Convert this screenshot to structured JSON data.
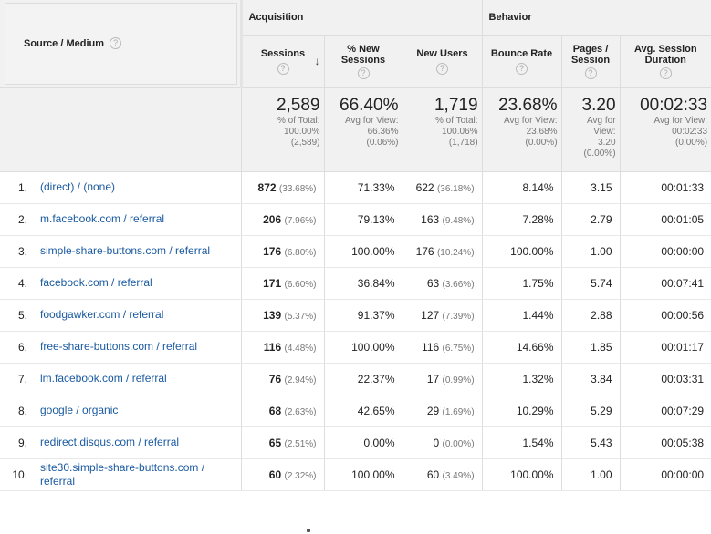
{
  "headers": {
    "source_medium": "Source / Medium",
    "acquisition": "Acquisition",
    "behavior": "Behavior",
    "sessions": "Sessions",
    "pct_new_sessions": "% New Sessions",
    "new_users": "New Users",
    "bounce_rate": "Bounce Rate",
    "pages_session": "Pages / Session",
    "avg_session_duration": "Avg. Session Duration"
  },
  "totals": {
    "sessions": {
      "value": "2,589",
      "l1": "% of Total:",
      "l2": "100.00%",
      "l3": "(2,589)"
    },
    "pct_new": {
      "value": "66.40%",
      "l1": "Avg for View:",
      "l2": "66.36%",
      "l3": "(0.06%)"
    },
    "new_users": {
      "value": "1,719",
      "l1": "% of Total:",
      "l2": "100.06%",
      "l3": "(1,718)"
    },
    "bounce": {
      "value": "23.68%",
      "l1": "Avg for View:",
      "l2": "23.68%",
      "l3": "(0.00%)"
    },
    "pages": {
      "value": "3.20",
      "l1": "Avg for",
      "l2": "View:",
      "l3": "3.20",
      "l4": "(0.00%)"
    },
    "duration": {
      "value": "00:02:33",
      "l1": "Avg for View:",
      "l2": "00:02:33",
      "l3": "(0.00%)"
    }
  },
  "rows": [
    {
      "idx": "1.",
      "src": "(direct) / (none)",
      "src2": "",
      "sessions": "872",
      "sessions_pct": "(33.68%)",
      "pct_new": "71.33%",
      "new_users": "622",
      "new_users_pct": "(36.18%)",
      "bounce": "8.14%",
      "pages": "3.15",
      "duration": "00:01:33"
    },
    {
      "idx": "2.",
      "src": "m.facebook.com / referral",
      "src2": "",
      "sessions": "206",
      "sessions_pct": "(7.96%)",
      "pct_new": "79.13%",
      "new_users": "163",
      "new_users_pct": "(9.48%)",
      "bounce": "7.28%",
      "pages": "2.79",
      "duration": "00:01:05"
    },
    {
      "idx": "3.",
      "src": "simple-share-buttons.com / referral",
      "src2": "",
      "sessions": "176",
      "sessions_pct": "(6.80%)",
      "pct_new": "100.00%",
      "new_users": "176",
      "new_users_pct": "(10.24%)",
      "bounce": "100.00%",
      "pages": "1.00",
      "duration": "00:00:00"
    },
    {
      "idx": "4.",
      "src": "facebook.com / referral",
      "src2": "",
      "sessions": "171",
      "sessions_pct": "(6.60%)",
      "pct_new": "36.84%",
      "new_users": "63",
      "new_users_pct": "(3.66%)",
      "bounce": "1.75%",
      "pages": "5.74",
      "duration": "00:07:41"
    },
    {
      "idx": "5.",
      "src": "foodgawker.com / referral",
      "src2": "",
      "sessions": "139",
      "sessions_pct": "(5.37%)",
      "pct_new": "91.37%",
      "new_users": "127",
      "new_users_pct": "(7.39%)",
      "bounce": "1.44%",
      "pages": "2.88",
      "duration": "00:00:56"
    },
    {
      "idx": "6.",
      "src": "free-share-buttons.com / referral",
      "src2": "",
      "sessions": "116",
      "sessions_pct": "(4.48%)",
      "pct_new": "100.00%",
      "new_users": "116",
      "new_users_pct": "(6.75%)",
      "bounce": "14.66%",
      "pages": "1.85",
      "duration": "00:01:17"
    },
    {
      "idx": "7.",
      "src": "lm.facebook.com / referral",
      "src2": "",
      "sessions": "76",
      "sessions_pct": "(2.94%)",
      "pct_new": "22.37%",
      "new_users": "17",
      "new_users_pct": "(0.99%)",
      "bounce": "1.32%",
      "pages": "3.84",
      "duration": "00:03:31"
    },
    {
      "idx": "8.",
      "src": "google / organic",
      "src2": "",
      "sessions": "68",
      "sessions_pct": "(2.63%)",
      "pct_new": "42.65%",
      "new_users": "29",
      "new_users_pct": "(1.69%)",
      "bounce": "10.29%",
      "pages": "5.29",
      "duration": "00:07:29"
    },
    {
      "idx": "9.",
      "src": "redirect.disqus.com / referral",
      "src2": "",
      "sessions": "65",
      "sessions_pct": "(2.51%)",
      "pct_new": "0.00%",
      "new_users": "0",
      "new_users_pct": "(0.00%)",
      "bounce": "1.54%",
      "pages": "5.43",
      "duration": "00:05:38"
    },
    {
      "idx": "10.",
      "src": "site30.simple-share-buttons.com /",
      "src2": "referral",
      "sessions": "60",
      "sessions_pct": "(2.32%)",
      "pct_new": "100.00%",
      "new_users": "60",
      "new_users_pct": "(3.49%)",
      "bounce": "100.00%",
      "pages": "1.00",
      "duration": "00:00:00"
    }
  ]
}
